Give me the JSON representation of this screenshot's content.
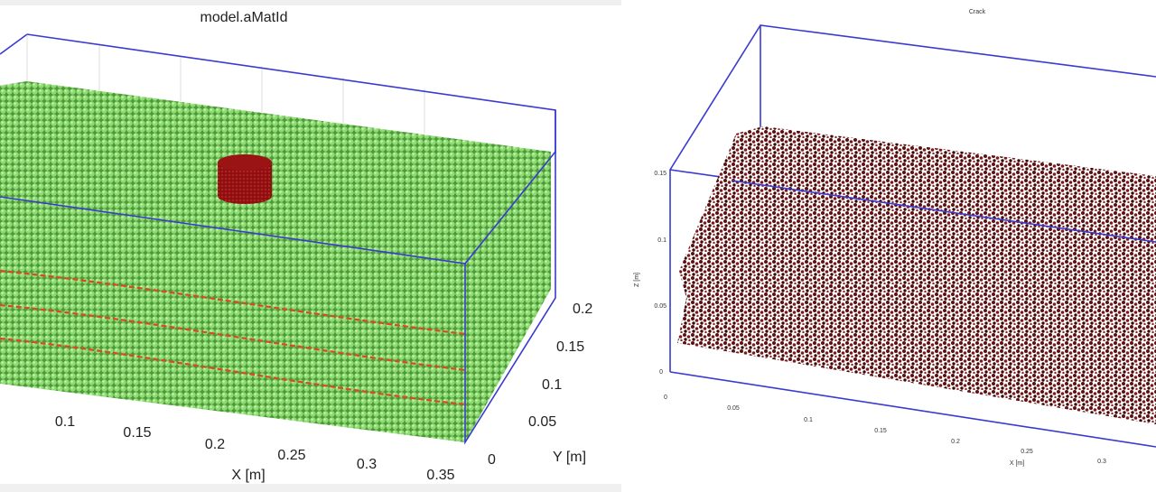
{
  "left_plot": {
    "title": "model.aMatId",
    "x_label": "X [m]",
    "y_label": "Y [m]",
    "x_ticks": [
      "0.1",
      "0.15",
      "0.2",
      "0.25",
      "0.3",
      "0.35"
    ],
    "y_ticks": [
      "0",
      "0.05",
      "0.1",
      "0.15",
      "0.2"
    ]
  },
  "right_plot": {
    "title": "Crack",
    "x_label": "X [m]",
    "z_label": "Z [m]",
    "x_ticks": [
      "0",
      "0.05",
      "0.1",
      "0.15",
      "0.2",
      "0.25",
      "0.3"
    ],
    "z_ticks": [
      "0",
      "0.05",
      "0.1",
      "0.15"
    ]
  }
}
